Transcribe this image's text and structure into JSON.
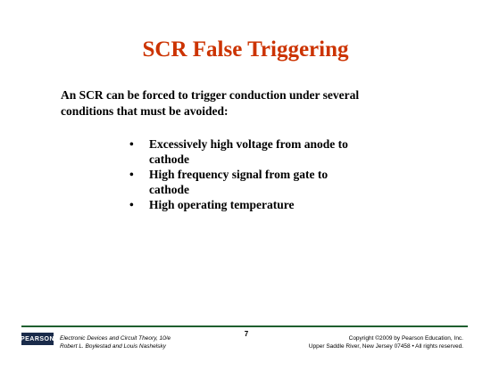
{
  "slide": {
    "title": "SCR False Triggering",
    "intro": "An SCR can be forced to trigger conduction under several conditions that must be avoided:",
    "bullet_symbol": "•",
    "bullets": [
      "Excessively high voltage from anode to cathode",
      "High frequency signal from gate to cathode",
      "High operating temperature"
    ]
  },
  "footer": {
    "logo_text": "PEARSON",
    "book_title": "Electronic Devices and Circuit Theory, 10/e",
    "authors": "Robert L. Boylestad and Louis Nashelsky",
    "page_number": "7",
    "copyright_line1": "Copyright ©2009 by Pearson Education, Inc.",
    "copyright_line2": "Upper Saddle River, New Jersey 07458 • All rights reserved."
  },
  "colors": {
    "title": "#cc3300",
    "footer_rule": "#1f5f2f",
    "logo_bg": "#1a2b4a"
  }
}
